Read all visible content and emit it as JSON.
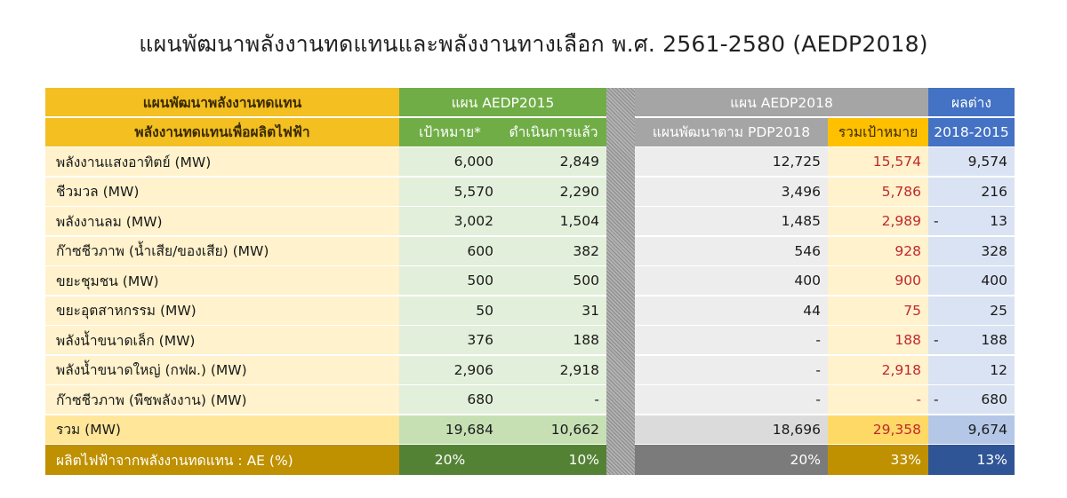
{
  "title": "แผนพัฒนาพลังงานทดแทนและพลังงานทางเลือก พ.ศ. 2561-2580 (AEDP2018)",
  "header": {
    "label_line1": "แผนพัฒนาพลังงานทดแทน",
    "label_line2": "พลังงานทดแทนเพื่อผลิตไฟฟ้า",
    "aedp2015": "แผน AEDP2015",
    "aedp2015_target": "เป้าหมาย*",
    "aedp2015_done": "ดำเนินการแล้ว",
    "aedp2018": "แผน AEDP2018",
    "aedp2018_pdp": "แผนพัฒนาตาม PDP2018",
    "aedp2018_total": "รวมเป้าหมาย",
    "diff": "ผลต่าง",
    "diff_years": "2018-2015"
  },
  "rows": [
    {
      "label": "พลังงานแสงอาทิตย์ (MW)",
      "target": "6,000",
      "done": "2,849",
      "pdp": "12,725",
      "total": "15,574",
      "diff_prefix": "",
      "diff": "9,574"
    },
    {
      "label": "ชีวมวล (MW)",
      "target": "5,570",
      "done": "2,290",
      "pdp": "3,496",
      "total": "5,786",
      "diff_prefix": "",
      "diff": "216"
    },
    {
      "label": "พลังงานลม (MW)",
      "target": "3,002",
      "done": "1,504",
      "pdp": "1,485",
      "total": "2,989",
      "diff_prefix": "-",
      "diff": "13"
    },
    {
      "label": "ก๊าซชีวภาพ (น้ำเสีย/ของเสีย) (MW)",
      "target": "600",
      "done": "382",
      "pdp": "546",
      "total": "928",
      "diff_prefix": "",
      "diff": "328"
    },
    {
      "label": "ขยะชุมชน (MW)",
      "target": "500",
      "done": "500",
      "pdp": "400",
      "total": "900",
      "diff_prefix": "",
      "diff": "400"
    },
    {
      "label": "ขยะอุตสาหกรรม (MW)",
      "target": "50",
      "done": "31",
      "pdp": "44",
      "total": "75",
      "diff_prefix": "",
      "diff": "25"
    },
    {
      "label": "พลังน้ำขนาดเล็ก (MW)",
      "target": "376",
      "done": "188",
      "pdp": "-",
      "total": "188",
      "diff_prefix": "-",
      "diff": "188"
    },
    {
      "label": "พลังน้ำขนาดใหญ่ (กฟผ.) (MW)",
      "target": "2,906",
      "done": "2,918",
      "pdp": "-",
      "total": "2,918",
      "diff_prefix": "",
      "diff": "12"
    },
    {
      "label": "ก๊าซชีวภาพ (พืชพลังงาน) (MW)",
      "target": "680",
      "done": "-",
      "pdp": "-",
      "total": "-",
      "diff_prefix": "-",
      "diff": "680"
    }
  ],
  "total_row": {
    "label": "รวม (MW)",
    "target": "19,684",
    "done": "10,662",
    "pdp": "18,696",
    "total": "29,358",
    "diff": "9,674"
  },
  "share_row": {
    "label": "ผลิตไฟฟ้าจากพลังงานทดแทน : AE (%)",
    "target": "20%",
    "done": "10%",
    "pdp": "20%",
    "total": "33%",
    "diff": "13%"
  },
  "colors": {
    "header_label": "#f3bf21",
    "header_aedp2015": "#70ad47",
    "header_aedp2018": "#a5a5a5",
    "header_total": "#ffc000",
    "header_diff": "#4472c4",
    "total_values_text": "#c0282d"
  }
}
